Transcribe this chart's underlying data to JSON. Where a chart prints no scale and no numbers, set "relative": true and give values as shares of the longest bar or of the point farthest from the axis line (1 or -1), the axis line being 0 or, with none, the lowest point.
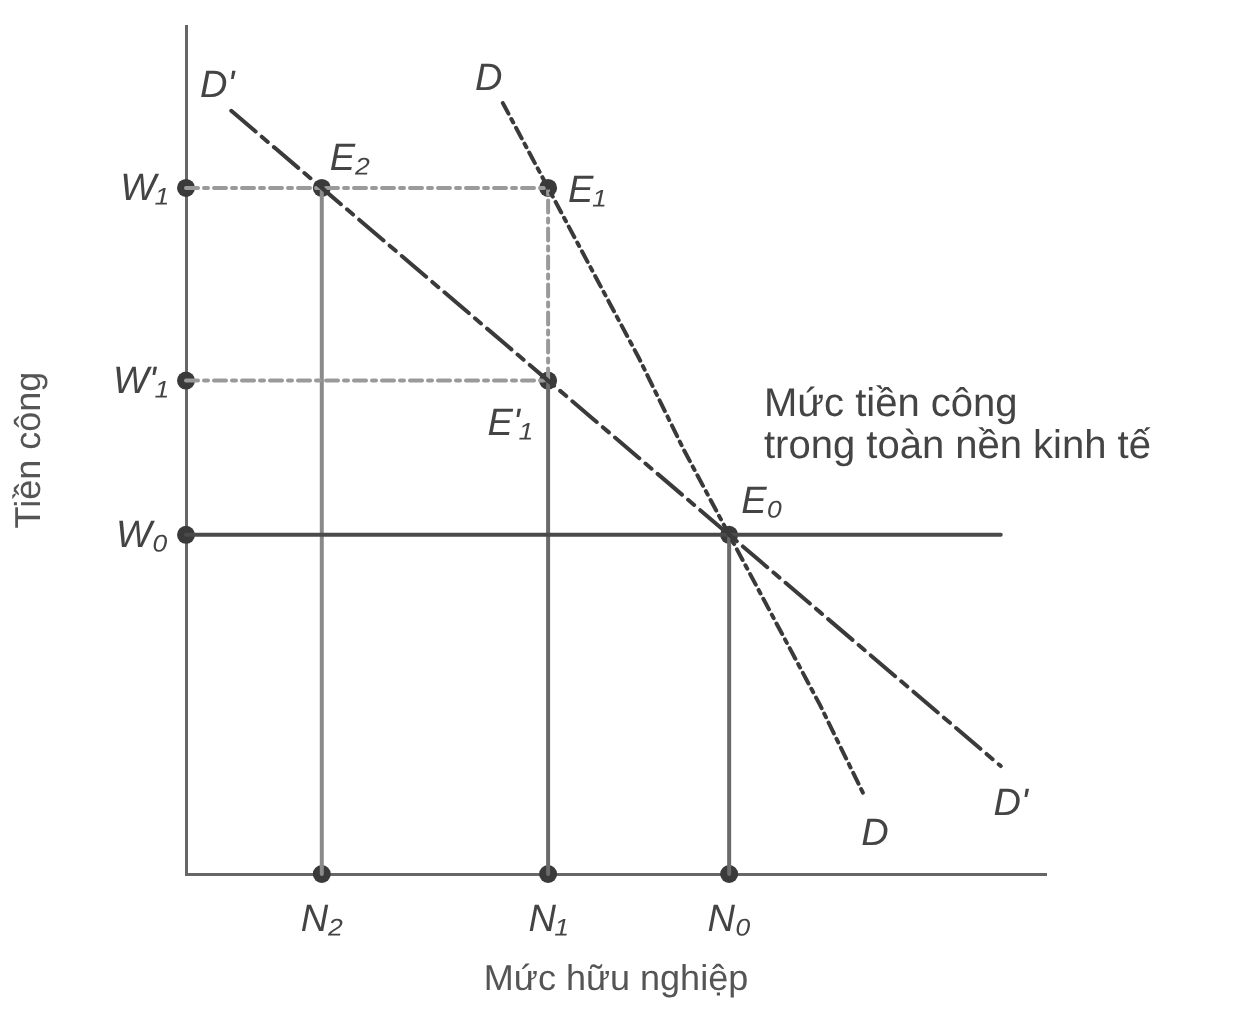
{
  "chart_data": {
    "type": "line",
    "relative": true,
    "xlabel": "Mức hữu nghiệp",
    "ylabel": "Tiền công",
    "grid": false,
    "legend": false,
    "categories": [
      null,
      null,
      null,
      "N₂",
      null,
      null,
      null,
      null,
      "N₁",
      null,
      null,
      null,
      "N₀",
      null,
      null,
      null,
      null,
      null,
      null,
      null
    ],
    "series": [
      {
        "name": "D'",
        "color": "#3a3a3a",
        "values": [
          null,
          0.99,
          0.94,
          0.89,
          0.84,
          0.79,
          0.74,
          0.69,
          0.64,
          0.59,
          0.54,
          0.49,
          0.44,
          0.39,
          0.34,
          0.29,
          0.24,
          0.19,
          0.14,
          null
        ],
        "line_style": "dashed"
      },
      {
        "name": "D",
        "color": "#3a3a3a",
        "values": [
          null,
          null,
          null,
          null,
          null,
          null,
          null,
          1,
          0.89,
          0.78,
          0.67,
          0.55,
          0.44,
          0.33,
          0.22,
          0.1,
          null,
          null,
          null,
          null
        ],
        "line_style": "dotted"
      },
      {
        "name": "W₀",
        "color": "#4a4a4a",
        "values": [
          0.44,
          0.44,
          0.44,
          0.44,
          0.44,
          0.44,
          0.44,
          0.44,
          0.44,
          0.44,
          0.44,
          0.44,
          0.44,
          0.44,
          0.44,
          0.44,
          0.44,
          0.44,
          0.44,
          null
        ],
        "line_style": "solid"
      },
      {
        "name": "W₁",
        "color": "#9a9a9a",
        "values": [
          0.89,
          0.89,
          0.89,
          0.89,
          0.89,
          0.89,
          0.89,
          0.89,
          0.89,
          null,
          null,
          null,
          null,
          null,
          null,
          null,
          null,
          null,
          null,
          null
        ],
        "line_style": "dotted"
      },
      {
        "name": "W'₁",
        "color": "#9a9a9a",
        "values": [
          0.64,
          0.64,
          0.64,
          0.64,
          0.64,
          0.64,
          0.64,
          0.64,
          0.64,
          null,
          null,
          null,
          null,
          null,
          null,
          null,
          null,
          null,
          null,
          null
        ],
        "line_style": "dotted"
      },
      {
        "color": "#8a8a8a",
        "x": [
          "N₂",
          "N₂"
        ],
        "values": [
          0,
          0.89
        ],
        "line_style": "solid"
      },
      {
        "color": "#9a9a9a",
        "x": [
          "N₁",
          "N₁"
        ],
        "values": [
          0.64,
          0.89
        ],
        "line_style": "dotted"
      },
      {
        "color": "#6a6a6a",
        "x": [
          "N₁",
          "N₁"
        ],
        "values": [
          0,
          0.64
        ],
        "line_style": "solid"
      },
      {
        "color": "#6a6a6a",
        "x": [
          "N₀",
          "N₀"
        ],
        "values": [
          0,
          0.44
        ],
        "line_style": "solid"
      },
      {
        "type": "scatter",
        "color": "#3a3a3a",
        "marker": "circle",
        "values": [
          0.89,
          null,
          null,
          0.89,
          null,
          null,
          null,
          null,
          0.89,
          null,
          null,
          null,
          0.44,
          null,
          null,
          null,
          null,
          null,
          null,
          null
        ]
      },
      {
        "type": "scatter",
        "color": "#3a3a3a",
        "marker": "circle",
        "values": [
          0.64,
          null,
          null,
          null,
          null,
          null,
          null,
          null,
          0.64,
          null,
          null,
          null,
          null,
          null,
          null,
          null,
          null,
          null,
          null,
          null
        ]
      },
      {
        "type": "scatter",
        "color": "#3a3a3a",
        "marker": "circle",
        "values": [
          0.44,
          null,
          null,
          0,
          null,
          null,
          null,
          null,
          0,
          null,
          null,
          null,
          0,
          null,
          null,
          null,
          null,
          null,
          null,
          null
        ]
      }
    ],
    "annotations": [
      "Mức tiền công\ntrong toàn nền kinh tế",
      {
        "text": "E₂",
        "x": "N₂",
        "y": 0.89
      },
      {
        "text": "E₁",
        "x": "N₁",
        "y": 0.89
      },
      {
        "text": "E'₁",
        "x": "N₁",
        "y": 0.64
      },
      {
        "text": "E₀",
        "x": "N₀",
        "y": 0.44
      }
    ]
  }
}
